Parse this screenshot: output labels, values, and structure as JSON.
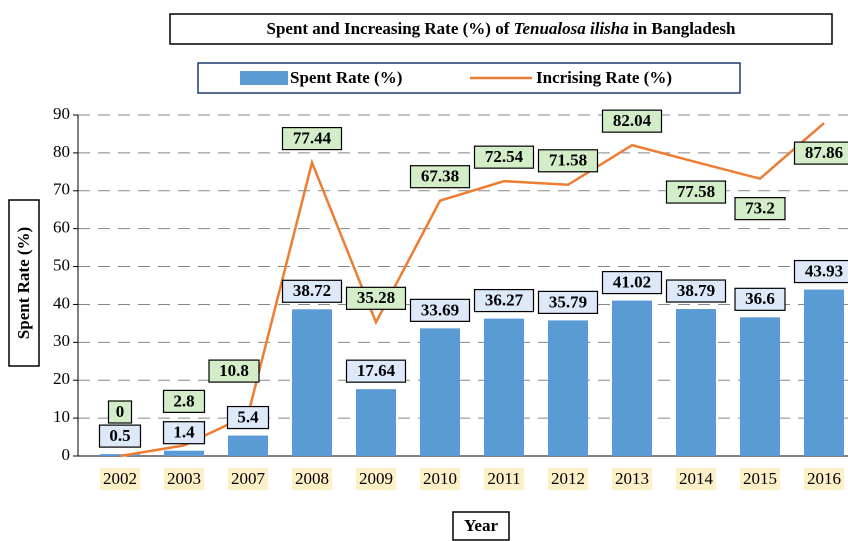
{
  "chart_data": {
    "type": "bar_line",
    "title": [
      "Spent and Increasing Rate (%) of ",
      "Tenualosa ilisha",
      " in Bangladesh"
    ],
    "x_label": "Year",
    "y_label": "Spent Rate (%)",
    "categories": [
      "2002",
      "2003",
      "2007",
      "2008",
      "2009",
      "2010",
      "2011",
      "2012",
      "2013",
      "2014",
      "2015",
      "2016"
    ],
    "series": [
      {
        "name": "Spent Rate (%)",
        "type": "bar",
        "color": "#5b9bd5",
        "values": [
          0.5,
          1.4,
          5.4,
          38.72,
          17.64,
          33.69,
          36.27,
          35.79,
          41.02,
          38.79,
          36.6,
          43.93
        ]
      },
      {
        "name": "Incrising Rate (%)",
        "type": "line",
        "color": "#ed7d31",
        "values": [
          0,
          2.8,
          10.8,
          77.44,
          35.28,
          67.38,
          72.54,
          71.58,
          82.04,
          77.58,
          73.2,
          87.86
        ]
      }
    ],
    "ylim": [
      0,
      90
    ],
    "yticks": [
      0,
      10,
      20,
      30,
      40,
      50,
      60,
      70,
      80,
      90
    ],
    "grid": true,
    "legend": "top"
  }
}
